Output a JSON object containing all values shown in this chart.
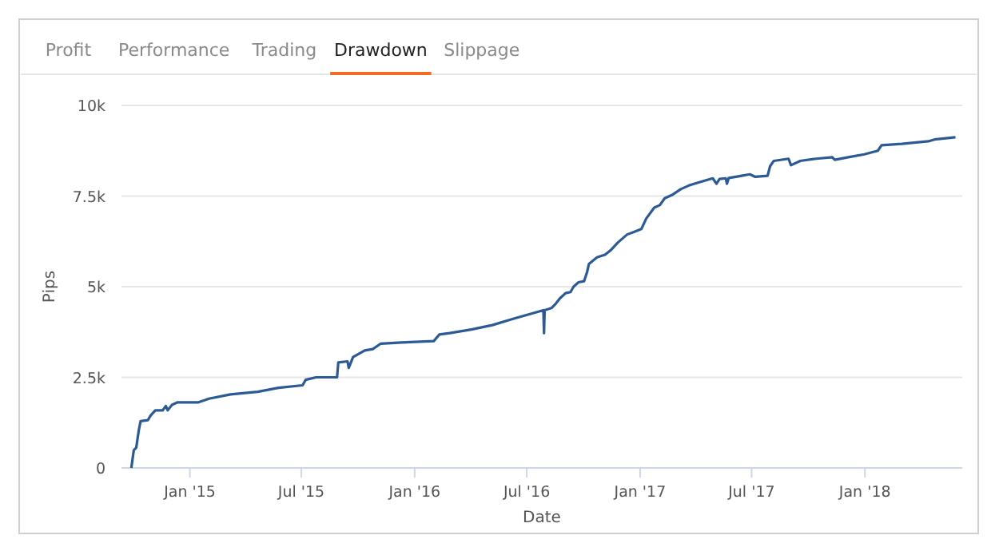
{
  "chart_data": {
    "type": "line",
    "xlabel": "Date",
    "ylabel": "Pips",
    "annotations": [
      "Profit",
      "Performance",
      "Trading",
      "Drawdown",
      "Slippage"
    ],
    "xlim": [
      "2014-09-12",
      "2018-06-08"
    ],
    "xticks": [
      {
        "value": "2015-01-01",
        "label": "Jan '15"
      },
      {
        "value": "2015-07-01",
        "label": "Jul '15"
      },
      {
        "value": "2016-01-01",
        "label": "Jan '16"
      },
      {
        "value": "2016-07-01",
        "label": "Jul '16"
      },
      {
        "value": "2017-01-01",
        "label": "Jan '17"
      },
      {
        "value": "2017-07-01",
        "label": "Jul '17"
      },
      {
        "value": "2018-01-01",
        "label": "Jan '18"
      }
    ],
    "ylim": [
      0,
      10000
    ],
    "yticks": [
      0,
      {
        "value": 2500,
        "label": "2.5k"
      },
      {
        "value": 5000,
        "label": "5k"
      },
      {
        "value": 7500,
        "label": "7.5k"
      },
      {
        "value": 10000,
        "label": "10k"
      }
    ],
    "grid": "y",
    "marker": "none",
    "line_style": "solid",
    "series": [
      {
        "color": "#2b5a94",
        "x": [
          "2014-09-28",
          "2014-10-02",
          "2014-10-06",
          "2014-10-10",
          "2014-10-13",
          "2014-10-25",
          "2014-10-29",
          "2014-11-06",
          "2014-11-18",
          "2014-11-23",
          "2014-11-26",
          "2014-12-03",
          "2014-12-12",
          "2015-01-15",
          "2015-02-01",
          "2015-03-08",
          "2015-04-21",
          "2015-05-25",
          "2015-07-03",
          "2015-07-08",
          "2015-07-25",
          "2015-08-28",
          "2015-08-30",
          "2015-09-14",
          "2015-09-16",
          "2015-09-23",
          "2015-10-12",
          "2015-10-25",
          "2015-11-07",
          "2015-12-11",
          "2016-02-01",
          "2016-02-10",
          "2016-02-27",
          "2016-04-02",
          "2016-05-06",
          "2016-06-10",
          "2016-07-28",
          "2016-07-29",
          "2016-07-30",
          "2016-08-10",
          "2016-08-17",
          "2016-08-24",
          "2016-09-02",
          "2016-09-10",
          "2016-09-15",
          "2016-09-23",
          "2016-10-02",
          "2016-10-07",
          "2016-10-10",
          "2016-10-23",
          "2016-11-05",
          "2016-11-14",
          "2016-11-26",
          "2016-12-11",
          "2016-12-22",
          "2017-01-03",
          "2017-01-11",
          "2017-01-24",
          "2017-02-02",
          "2017-02-10",
          "2017-02-23",
          "2017-03-08",
          "2017-03-21",
          "2017-04-07",
          "2017-04-29",
          "2017-05-05",
          "2017-05-10",
          "2017-05-20",
          "2017-05-22",
          "2017-05-25",
          "2017-06-15",
          "2017-06-28",
          "2017-07-07",
          "2017-07-27",
          "2017-07-31",
          "2017-08-06",
          "2017-08-30",
          "2017-09-03",
          "2017-09-18",
          "2017-10-14",
          "2017-11-09",
          "2017-11-13",
          "2017-12-05",
          "2017-12-31",
          "2018-01-22",
          "2018-01-28",
          "2018-03-02",
          "2018-04-14",
          "2018-04-24",
          "2018-05-28"
        ],
        "values": [
          0,
          490,
          560,
          1030,
          1290,
          1320,
          1440,
          1590,
          1590,
          1710,
          1590,
          1740,
          1810,
          1810,
          1910,
          2030,
          2100,
          2210,
          2280,
          2430,
          2500,
          2500,
          2910,
          2940,
          2760,
          3060,
          3240,
          3280,
          3430,
          3460,
          3500,
          3680,
          3720,
          3820,
          3940,
          4120,
          4350,
          3720,
          4350,
          4410,
          4530,
          4680,
          4820,
          4850,
          5000,
          5120,
          5150,
          5410,
          5630,
          5810,
          5880,
          6000,
          6220,
          6440,
          6510,
          6590,
          6880,
          7180,
          7250,
          7440,
          7540,
          7690,
          7790,
          7880,
          7990,
          7840,
          7970,
          7990,
          7840,
          8000,
          8060,
          8100,
          8030,
          8060,
          8320,
          8470,
          8530,
          8350,
          8470,
          8530,
          8570,
          8500,
          8570,
          8650,
          8750,
          8900,
          8940,
          9010,
          9060,
          9120
        ]
      }
    ]
  }
}
